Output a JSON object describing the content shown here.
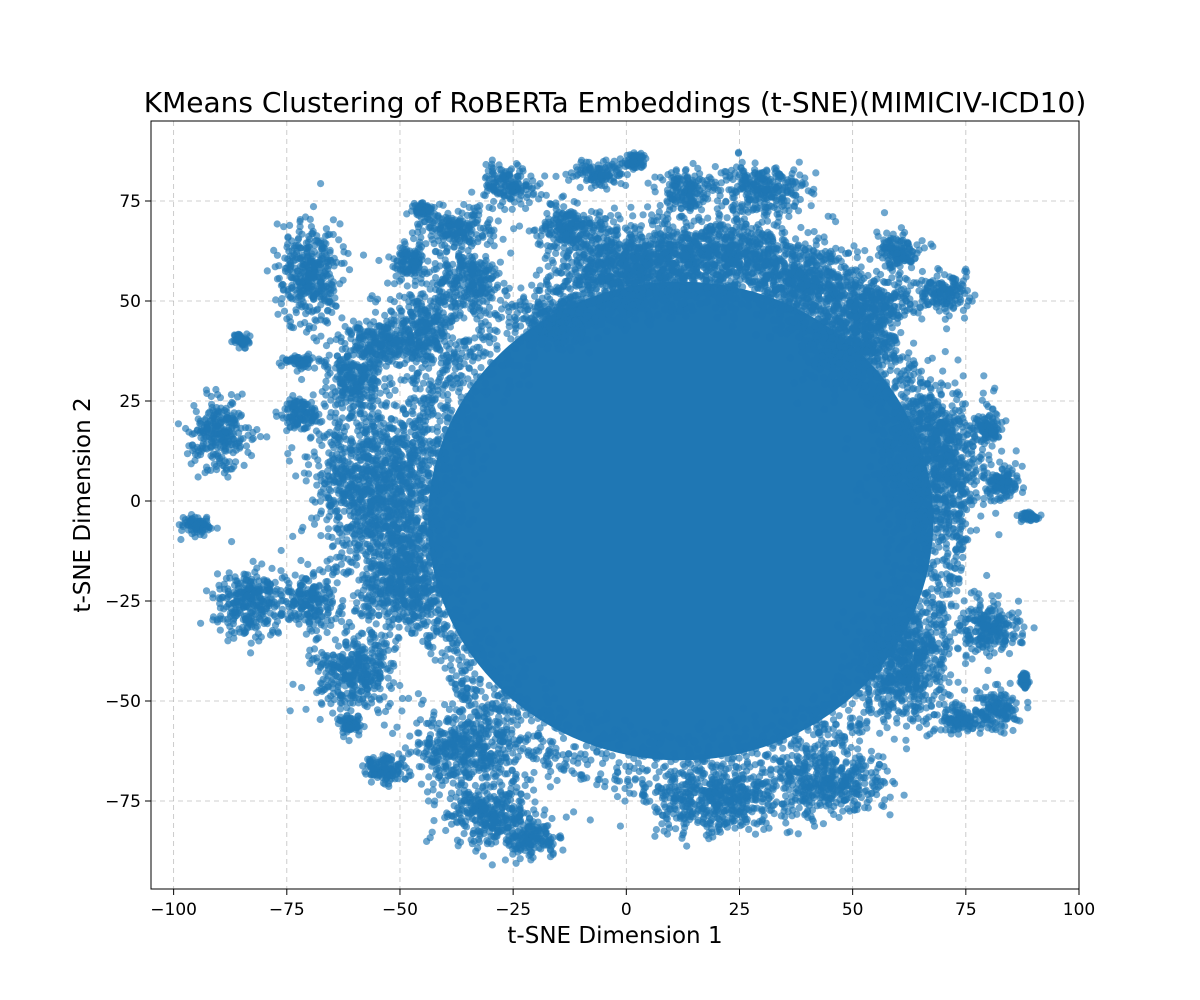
{
  "chart_data": {
    "type": "scatter",
    "title": "KMeans Clustering of RoBERTa Embeddings (t-SNE)(MIMICIV-ICD10)",
    "xlabel": "t-SNE Dimension 1",
    "ylabel": "t-SNE Dimension 2",
    "xlim": [
      -105,
      100
    ],
    "ylim": [
      -97,
      95
    ],
    "xticks": [
      -100,
      -75,
      -50,
      -25,
      0,
      25,
      50,
      75,
      100
    ],
    "yticks": [
      -75,
      -50,
      -25,
      0,
      25,
      50,
      75
    ],
    "xtick_labels": [
      "−100",
      "−75",
      "−50",
      "−25",
      "0",
      "25",
      "50",
      "75",
      "100"
    ],
    "ytick_labels": [
      "−75",
      "−50",
      "−25",
      "0",
      "25",
      "50",
      "75"
    ],
    "grid": true,
    "point_color": "#1f77b4",
    "point_alpha": 0.65,
    "main_mass": {
      "center": [
        12,
        -5
      ],
      "radius_x": 62,
      "radius_y": 68
    },
    "clusters": [
      {
        "x": -70,
        "y": 57,
        "sx": 3.5,
        "sy": 6.5
      },
      {
        "x": -90,
        "y": 17,
        "sx": 3.2,
        "sy": 4.5
      },
      {
        "x": -95,
        "y": -6,
        "sx": 1.5,
        "sy": 1.2
      },
      {
        "x": -83,
        "y": -25,
        "sx": 4,
        "sy": 4.5
      },
      {
        "x": -70,
        "y": -25,
        "sx": 3,
        "sy": 3
      },
      {
        "x": -60,
        "y": -43,
        "sx": 4.5,
        "sy": 5
      },
      {
        "x": -61,
        "y": -56,
        "sx": 1.2,
        "sy": 1.2
      },
      {
        "x": -53,
        "y": -67,
        "sx": 2.5,
        "sy": 1.8
      },
      {
        "x": -30,
        "y": -78,
        "sx": 5,
        "sy": 4
      },
      {
        "x": -21,
        "y": -85,
        "sx": 3,
        "sy": 2
      },
      {
        "x": -26,
        "y": 79,
        "sx": 3,
        "sy": 2.5
      },
      {
        "x": -6,
        "y": 82,
        "sx": 3,
        "sy": 1.5
      },
      {
        "x": 2,
        "y": 85,
        "sx": 1,
        "sy": 1
      },
      {
        "x": 13,
        "y": 78,
        "sx": 3,
        "sy": 2.5
      },
      {
        "x": 30,
        "y": 78,
        "sx": 5,
        "sy": 3
      },
      {
        "x": 60,
        "y": 62,
        "sx": 2.5,
        "sy": 2.5
      },
      {
        "x": 70,
        "y": 52,
        "sx": 3,
        "sy": 2.5
      },
      {
        "x": 80,
        "y": -32,
        "sx": 3.5,
        "sy": 3.5
      },
      {
        "x": 82,
        "y": -52,
        "sx": 2.5,
        "sy": 2.5
      },
      {
        "x": 74,
        "y": -55,
        "sx": 2.5,
        "sy": 1.5
      },
      {
        "x": 83,
        "y": 5,
        "sx": 2,
        "sy": 2
      },
      {
        "x": 80,
        "y": 18,
        "sx": 1.5,
        "sy": 1.5
      },
      {
        "x": 89,
        "y": -4,
        "sx": 1,
        "sy": 0.5
      },
      {
        "x": 88,
        "y": -45,
        "sx": 0.5,
        "sy": 1
      },
      {
        "x": -72,
        "y": 22,
        "sx": 2,
        "sy": 2
      },
      {
        "x": -72,
        "y": 35,
        "sx": 1.5,
        "sy": 0.8
      },
      {
        "x": -85,
        "y": 40,
        "sx": 0.8,
        "sy": 0.8
      },
      {
        "x": -48,
        "y": 60,
        "sx": 2,
        "sy": 2
      },
      {
        "x": -45,
        "y": 73,
        "sx": 1,
        "sy": 0.8
      },
      {
        "x": -55,
        "y": 40,
        "sx": 3.5,
        "sy": 3
      },
      {
        "x": -60,
        "y": 30,
        "sx": 3,
        "sy": 3
      },
      {
        "x": -35,
        "y": 55,
        "sx": 4,
        "sy": 4
      },
      {
        "x": -38,
        "y": 68,
        "sx": 4,
        "sy": 2.5
      },
      {
        "x": -15,
        "y": 45,
        "sx": 4.5,
        "sy": 3
      },
      {
        "x": -12,
        "y": 68,
        "sx": 4,
        "sy": 3
      },
      {
        "x": -45,
        "y": 42,
        "sx": 4,
        "sy": 6
      },
      {
        "x": -55,
        "y": 5,
        "sx": 7,
        "sy": 12
      },
      {
        "x": -50,
        "y": -20,
        "sx": 5,
        "sy": 7
      },
      {
        "x": -35,
        "y": -62,
        "sx": 6,
        "sy": 5
      },
      {
        "x": 0,
        "y": 58,
        "sx": 8,
        "sy": 6
      },
      {
        "x": 20,
        "y": 62,
        "sx": 9,
        "sy": 5
      },
      {
        "x": 40,
        "y": 55,
        "sx": 6,
        "sy": 5
      },
      {
        "x": 50,
        "y": 40,
        "sx": 5,
        "sy": 6
      },
      {
        "x": 45,
        "y": -70,
        "sx": 6,
        "sy": 4
      },
      {
        "x": 20,
        "y": -75,
        "sx": 8,
        "sy": 4
      },
      {
        "x": 62,
        "y": -40,
        "sx": 5,
        "sy": 8
      },
      {
        "x": 68,
        "y": 10,
        "sx": 6,
        "sy": 10
      },
      {
        "x": 55,
        "y": 50,
        "sx": 4,
        "sy": 3
      }
    ]
  }
}
